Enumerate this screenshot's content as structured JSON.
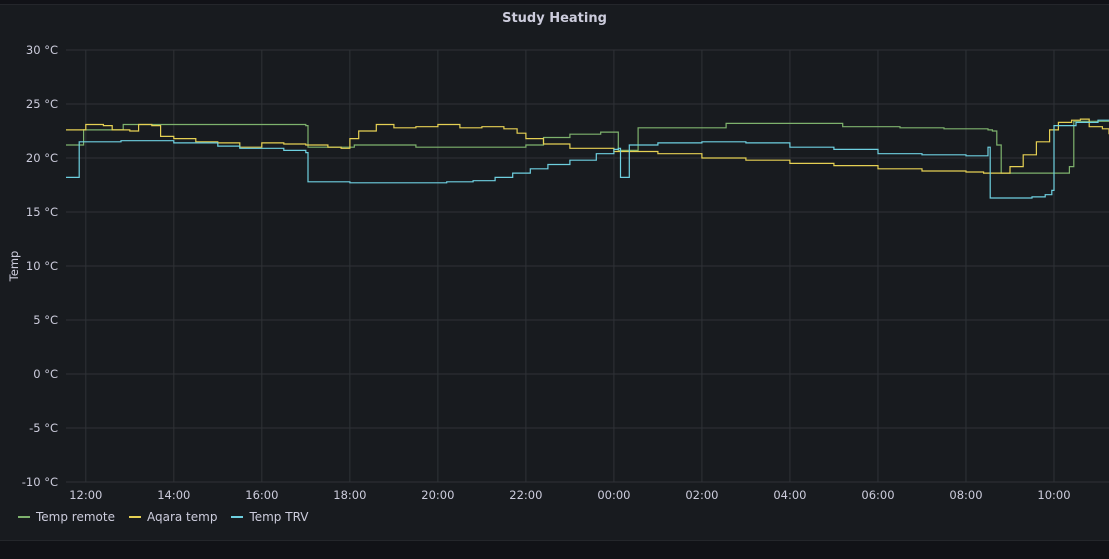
{
  "panel": {
    "title": "Study Heating"
  },
  "chart_data": {
    "type": "line",
    "title": "Study Heating",
    "xlabel": "",
    "ylabel": "Temp",
    "unit": "°C",
    "yticks": [
      "30 °C",
      "25 °C",
      "20 °C",
      "15 °C",
      "10 °C",
      "5 °C",
      "0 °C",
      "-5 °C",
      "-10 °C"
    ],
    "ytick_values": [
      30,
      25,
      20,
      15,
      10,
      5,
      0,
      -5,
      -10
    ],
    "ylim": [
      -10,
      30
    ],
    "xticks": [
      "12:00",
      "14:00",
      "16:00",
      "18:00",
      "20:00",
      "22:00",
      "00:00",
      "02:00",
      "04:00",
      "06:00",
      "08:00",
      "10:00"
    ],
    "xtick_values": [
      12,
      14,
      16,
      18,
      20,
      22,
      24,
      26,
      28,
      30,
      32,
      34
    ],
    "xlim": [
      11.55,
      35.25
    ],
    "x_unit": "hours since 00:00 of first day",
    "grid": true,
    "legend_position": "bottom-left",
    "series": [
      {
        "name": "Temp remote",
        "color": "#7eb26d",
        "points": [
          [
            11.55,
            21.2
          ],
          [
            11.9,
            21.2
          ],
          [
            11.95,
            22.6
          ],
          [
            12.8,
            22.6
          ],
          [
            12.85,
            23.1
          ],
          [
            16,
            23.1
          ],
          [
            17,
            23.0
          ],
          [
            17.05,
            21.0
          ],
          [
            18,
            21.0
          ],
          [
            18.1,
            21.2
          ],
          [
            19.5,
            21.0
          ],
          [
            21.7,
            21.0
          ],
          [
            22,
            21.2
          ],
          [
            22.4,
            21.9
          ],
          [
            23,
            22.2
          ],
          [
            23.7,
            22.4
          ],
          [
            24.05,
            22.4
          ],
          [
            24.1,
            20.7
          ],
          [
            24.5,
            20.7
          ],
          [
            24.55,
            22.8
          ],
          [
            26.5,
            22.8
          ],
          [
            26.55,
            23.2
          ],
          [
            29,
            23.2
          ],
          [
            29.2,
            22.9
          ],
          [
            30.5,
            22.8
          ],
          [
            31.5,
            22.7
          ],
          [
            32.5,
            22.6
          ],
          [
            32.6,
            22.5
          ],
          [
            32.7,
            21.2
          ],
          [
            32.8,
            18.6
          ],
          [
            34.2,
            18.6
          ],
          [
            34.35,
            19.2
          ],
          [
            34.45,
            23.4
          ],
          [
            35.25,
            23.4
          ]
        ]
      },
      {
        "name": "Aqara temp",
        "color": "#e5d053",
        "points": [
          [
            11.55,
            22.6
          ],
          [
            11.9,
            22.6
          ],
          [
            12,
            23.1
          ],
          [
            12.4,
            23.0
          ],
          [
            12.6,
            22.6
          ],
          [
            13,
            22.5
          ],
          [
            13.2,
            23.1
          ],
          [
            13.5,
            23.0
          ],
          [
            13.7,
            22.0
          ],
          [
            14,
            21.8
          ],
          [
            14.5,
            21.5
          ],
          [
            15,
            21.4
          ],
          [
            15.5,
            21.0
          ],
          [
            16,
            21.4
          ],
          [
            16.5,
            21.3
          ],
          [
            17,
            21.2
          ],
          [
            17.5,
            21.0
          ],
          [
            17.8,
            20.9
          ],
          [
            18,
            21.8
          ],
          [
            18.2,
            22.5
          ],
          [
            18.6,
            23.1
          ],
          [
            19,
            22.8
          ],
          [
            19.5,
            22.9
          ],
          [
            20,
            23.1
          ],
          [
            20.5,
            22.8
          ],
          [
            21,
            22.9
          ],
          [
            21.5,
            22.7
          ],
          [
            21.8,
            22.3
          ],
          [
            22,
            21.8
          ],
          [
            22.4,
            21.3
          ],
          [
            23,
            20.9
          ],
          [
            24,
            20.6
          ],
          [
            25,
            20.4
          ],
          [
            26,
            20.0
          ],
          [
            27,
            19.8
          ],
          [
            28,
            19.5
          ],
          [
            29,
            19.3
          ],
          [
            30,
            19.0
          ],
          [
            31,
            18.8
          ],
          [
            32,
            18.7
          ],
          [
            32.4,
            18.6
          ],
          [
            32.8,
            18.6
          ],
          [
            33,
            19.2
          ],
          [
            33.3,
            20.3
          ],
          [
            33.6,
            21.5
          ],
          [
            33.9,
            22.6
          ],
          [
            34.1,
            23.3
          ],
          [
            34.4,
            23.5
          ],
          [
            34.6,
            23.6
          ],
          [
            34.8,
            22.9
          ],
          [
            35.1,
            22.7
          ],
          [
            35.25,
            22.2
          ]
        ]
      },
      {
        "name": "Temp TRV",
        "color": "#6ed0e0",
        "points": [
          [
            11.55,
            18.2
          ],
          [
            11.8,
            18.2
          ],
          [
            11.85,
            21.5
          ],
          [
            12.5,
            21.5
          ],
          [
            12.8,
            21.6
          ],
          [
            13.5,
            21.6
          ],
          [
            14,
            21.4
          ],
          [
            15,
            21.1
          ],
          [
            15.5,
            20.9
          ],
          [
            16,
            20.9
          ],
          [
            16.5,
            20.7
          ],
          [
            17,
            20.5
          ],
          [
            17.05,
            17.8
          ],
          [
            18,
            17.7
          ],
          [
            19.5,
            17.7
          ],
          [
            20.2,
            17.8
          ],
          [
            20.8,
            17.9
          ],
          [
            21.3,
            18.2
          ],
          [
            21.7,
            18.6
          ],
          [
            22.1,
            19.0
          ],
          [
            22.5,
            19.4
          ],
          [
            23,
            19.8
          ],
          [
            23.6,
            20.4
          ],
          [
            24,
            20.8
          ],
          [
            24.1,
            20.9
          ],
          [
            24.15,
            18.2
          ],
          [
            24.3,
            18.2
          ],
          [
            24.35,
            21.2
          ],
          [
            24.8,
            21.2
          ],
          [
            25,
            21.4
          ],
          [
            26,
            21.5
          ],
          [
            27,
            21.4
          ],
          [
            28,
            21.0
          ],
          [
            29,
            20.8
          ],
          [
            30,
            20.4
          ],
          [
            31,
            20.3
          ],
          [
            32,
            20.2
          ],
          [
            32.45,
            20.2
          ],
          [
            32.5,
            21.0
          ],
          [
            32.55,
            16.3
          ],
          [
            33,
            16.3
          ],
          [
            33.5,
            16.4
          ],
          [
            33.8,
            16.6
          ],
          [
            33.95,
            17.0
          ],
          [
            34,
            23.0
          ],
          [
            34.5,
            23.3
          ],
          [
            35,
            23.5
          ],
          [
            35.25,
            23.5
          ]
        ]
      }
    ]
  }
}
